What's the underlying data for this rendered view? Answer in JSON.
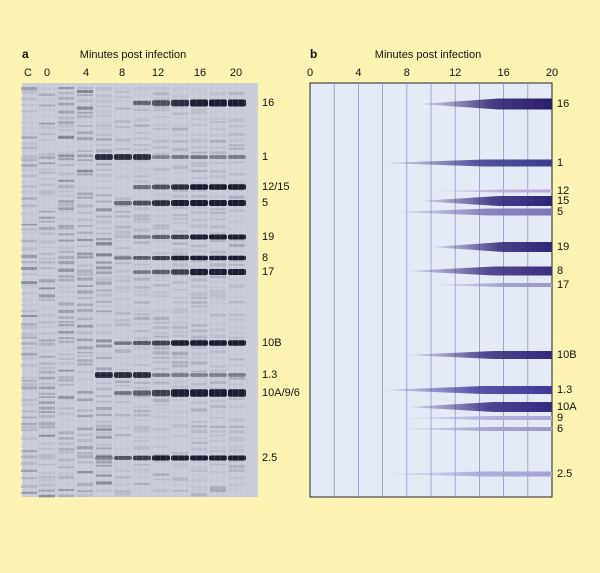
{
  "panel_a": {
    "label": "a",
    "axis_title": "Minutes post infection",
    "lane_labels": [
      "C",
      "0",
      "4",
      "8",
      "12",
      "16",
      "20"
    ],
    "band_labels": [
      "16",
      "1",
      "12/15",
      "5",
      "19",
      "8",
      "17",
      "10B",
      "1.3",
      "10A/9/6",
      "2.5"
    ]
  },
  "panel_b": {
    "label": "b",
    "axis_title": "Minutes post infection",
    "xlim": [
      0,
      20
    ],
    "xticks": [
      0,
      4,
      8,
      12,
      16,
      20
    ],
    "bands": [
      {
        "label": "16",
        "onset": 9
      },
      {
        "label": "1",
        "onset": 6
      },
      {
        "label": "12",
        "onset": 10
      },
      {
        "label": "15",
        "onset": 9
      },
      {
        "label": "5",
        "onset": 7
      },
      {
        "label": "19",
        "onset": 10
      },
      {
        "label": "8",
        "onset": 8
      },
      {
        "label": "17",
        "onset": 10
      },
      {
        "label": "10B",
        "onset": 8
      },
      {
        "label": "1.3",
        "onset": 6
      },
      {
        "label": "10A",
        "onset": 8
      },
      {
        "label": "9",
        "onset": 7.5
      },
      {
        "label": "6",
        "onset": 7
      },
      {
        "label": "2.5",
        "onset": 6
      }
    ]
  }
}
